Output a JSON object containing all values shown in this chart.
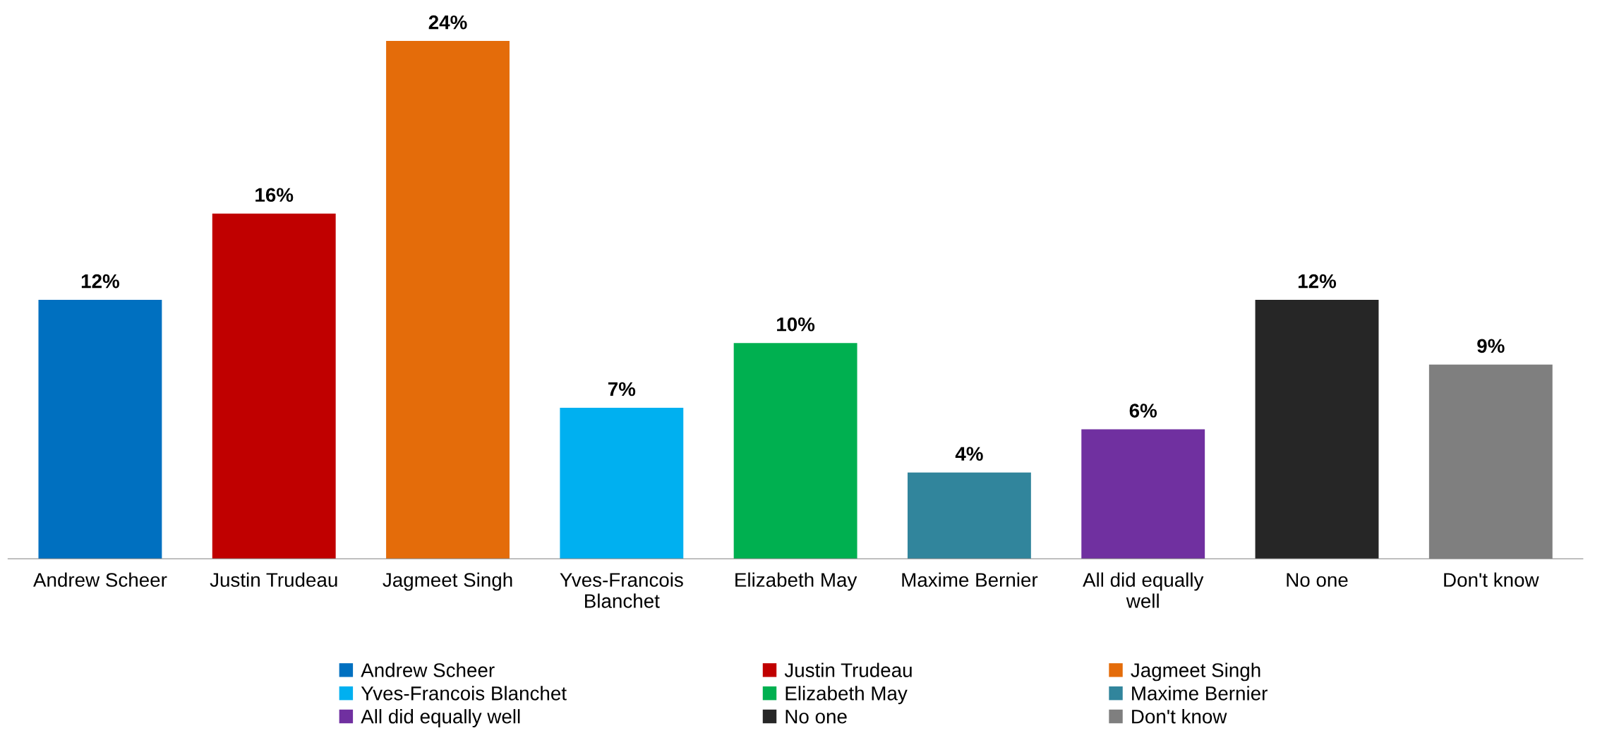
{
  "chart_data": {
    "type": "bar",
    "categories": [
      "Andrew Scheer",
      "Justin Trudeau",
      "Jagmeet Singh",
      "Yves-Francois\nBlanchet",
      "Elizabeth May",
      "Maxime Bernier",
      "All did equally\nwell",
      "No one",
      "Don't know"
    ],
    "series": [
      {
        "name": "Andrew Scheer",
        "color": "#0070c0",
        "values": [
          12,
          null,
          null,
          null,
          null,
          null,
          null,
          null,
          null
        ],
        "value_labels": [
          "12%",
          null,
          null,
          null,
          null,
          null,
          null,
          null,
          null
        ]
      },
      {
        "name": "Justin Trudeau",
        "color": "#c00000",
        "values": [
          null,
          16,
          null,
          null,
          null,
          null,
          null,
          null,
          null
        ],
        "value_labels": [
          null,
          "16%",
          null,
          null,
          null,
          null,
          null,
          null,
          null
        ]
      },
      {
        "name": "Jagmeet Singh",
        "color": "#e46c0a",
        "values": [
          null,
          null,
          24,
          null,
          null,
          null,
          null,
          null,
          null
        ],
        "value_labels": [
          null,
          null,
          "24%",
          null,
          null,
          null,
          null,
          null,
          null
        ]
      },
      {
        "name": "Yves-Francois Blanchet",
        "color": "#00b0f0",
        "values": [
          null,
          null,
          null,
          7,
          null,
          null,
          null,
          null,
          null
        ],
        "value_labels": [
          null,
          null,
          null,
          "7%",
          null,
          null,
          null,
          null,
          null
        ]
      },
      {
        "name": "Elizabeth May",
        "color": "#00b050",
        "values": [
          null,
          null,
          null,
          null,
          10,
          null,
          null,
          null,
          null
        ],
        "value_labels": [
          null,
          null,
          null,
          null,
          "10%",
          null,
          null,
          null,
          null
        ]
      },
      {
        "name": "Maxime Bernier",
        "color": "#31859c",
        "values": [
          null,
          null,
          null,
          null,
          null,
          4,
          null,
          null,
          null
        ],
        "value_labels": [
          null,
          null,
          null,
          null,
          null,
          "4%",
          null,
          null,
          null
        ]
      },
      {
        "name": "All did equally well",
        "color": "#7030a0",
        "values": [
          null,
          null,
          null,
          null,
          null,
          null,
          6,
          null,
          null
        ],
        "value_labels": [
          null,
          null,
          null,
          null,
          null,
          null,
          "6%",
          null,
          null
        ]
      },
      {
        "name": "No one",
        "color": "#262626",
        "values": [
          null,
          null,
          null,
          null,
          null,
          null,
          null,
          12,
          null
        ],
        "value_labels": [
          null,
          null,
          null,
          null,
          null,
          null,
          null,
          "12%",
          null
        ]
      },
      {
        "name": "Don't know",
        "color": "#7f7f7f",
        "values": [
          null,
          null,
          null,
          null,
          null,
          null,
          null,
          null,
          9
        ],
        "value_labels": [
          null,
          null,
          null,
          null,
          null,
          null,
          null,
          null,
          "9%"
        ]
      }
    ],
    "legend": "bottom",
    "grid": false
  }
}
